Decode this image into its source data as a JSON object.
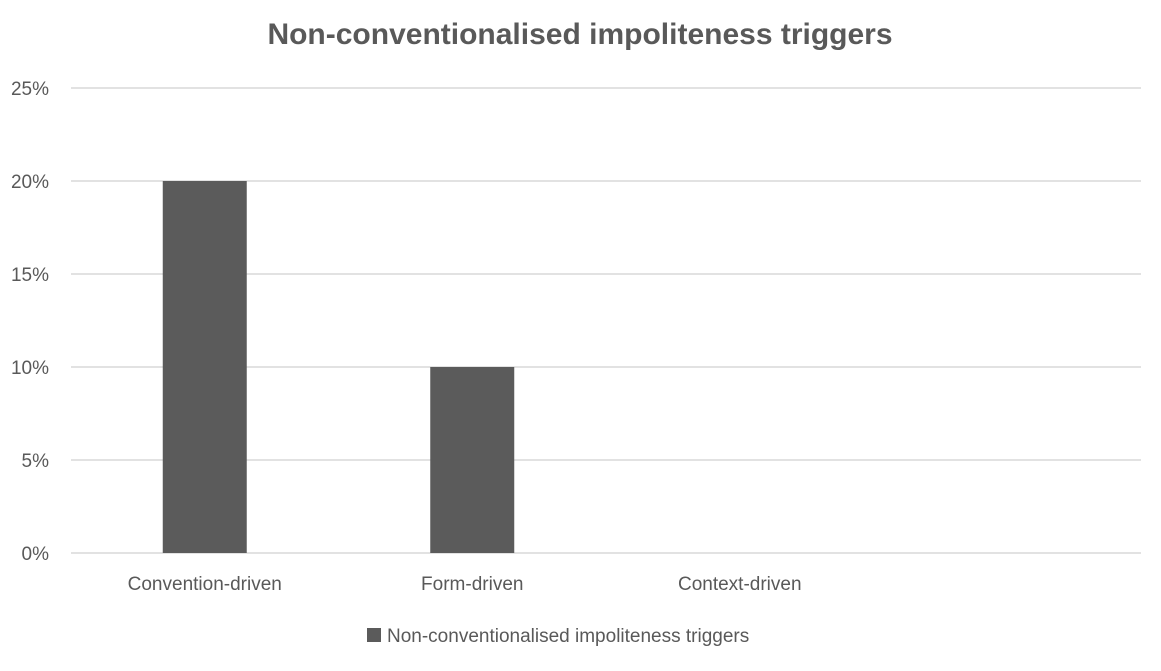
{
  "chart_data": {
    "type": "bar",
    "title": "Non-conventionalised impoliteness triggers",
    "categories": [
      "Convention-driven",
      "Form-driven",
      "Context-driven"
    ],
    "series": [
      {
        "name": "Non-conventionalised impoliteness triggers",
        "values": [
          20,
          10,
          0
        ],
        "color": "#5b5b5b"
      }
    ],
    "y_unit": "%",
    "ylim": [
      0,
      25
    ],
    "yticks": [
      0,
      5,
      10,
      15,
      20,
      25
    ],
    "ytick_labels": [
      "0%",
      "5%",
      "10%",
      "15%",
      "20%",
      "25%"
    ],
    "grid": true,
    "legend_position": "bottom",
    "colors": {
      "bar": "#5b5b5b",
      "grid": "#d9d9d9",
      "text": "#595959",
      "title": "#595959"
    }
  }
}
